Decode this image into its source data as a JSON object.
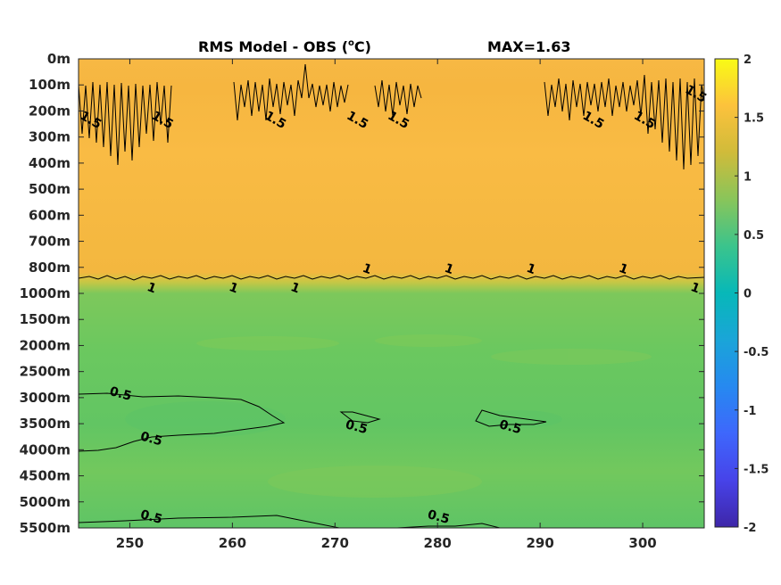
{
  "chart_data": {
    "type": "heatmap",
    "title": "RMS Model - OBS",
    "title_unit_base": "C",
    "title_unit_sup": "o",
    "max_label": "MAX=1.63",
    "x_ticks": [
      "250",
      "260",
      "270",
      "280",
      "290",
      "300"
    ],
    "x_tick_values": [
      250,
      260,
      270,
      280,
      290,
      300
    ],
    "xlim": [
      245,
      306
    ],
    "y_ticks": [
      "0m",
      "100m",
      "200m",
      "300m",
      "400m",
      "500m",
      "600m",
      "700m",
      "800m",
      "1000m",
      "1500m",
      "2000m",
      "2500m",
      "3000m",
      "3500m",
      "4000m",
      "4500m",
      "5000m",
      "5500m"
    ],
    "colorbar": {
      "ticks": [
        "2",
        "1.5",
        "1",
        "0.5",
        "0",
        "-0.5",
        "-1",
        "-1.5",
        "-2"
      ],
      "tick_values": [
        2,
        1.5,
        1,
        0.5,
        0,
        -0.5,
        -1,
        -1.5,
        -2
      ],
      "range": [
        -2,
        2
      ],
      "colormap": "parula"
    },
    "field": {
      "upper_layer_value": 1.4,
      "lower_layer_value": 0.6,
      "upper_layer_color": "#f7b844",
      "lower_layer_color": "#73c75e"
    },
    "contour_labels": [
      {
        "text": "1.5",
        "x": 246,
        "level": "200m"
      },
      {
        "text": "1.5",
        "x": 253,
        "level": "200m"
      },
      {
        "text": "1.5",
        "x": 264,
        "level": "200m"
      },
      {
        "text": "1.5",
        "x": 272,
        "level": "200m"
      },
      {
        "text": "1.5",
        "x": 276,
        "level": "200m"
      },
      {
        "text": "1.5",
        "x": 295,
        "level": "200m"
      },
      {
        "text": "1.5",
        "x": 300,
        "level": "200m"
      },
      {
        "text": "1.5",
        "x": 305,
        "level": "100m"
      },
      {
        "text": "1",
        "x": 252,
        "level": "1000m"
      },
      {
        "text": "1",
        "x": 260,
        "level": "1000m"
      },
      {
        "text": "1",
        "x": 266,
        "level": "1000m"
      },
      {
        "text": "1",
        "x": 273,
        "level": "800m"
      },
      {
        "text": "1",
        "x": 281,
        "level": "800m"
      },
      {
        "text": "1",
        "x": 289,
        "level": "800m"
      },
      {
        "text": "1",
        "x": 298,
        "level": "800m"
      },
      {
        "text": "1",
        "x": 305,
        "level": "1000m"
      },
      {
        "text": "0.5",
        "x": 249,
        "level": "3000m"
      },
      {
        "text": "0.5",
        "x": 252,
        "level": "4000m"
      },
      {
        "text": "0.5",
        "x": 272,
        "level": "3500m"
      },
      {
        "text": "0.5",
        "x": 287,
        "level": "3500m"
      },
      {
        "text": "0.5",
        "x": 252,
        "level": "5500m"
      },
      {
        "text": "0.5",
        "x": 280,
        "level": "5500m"
      }
    ]
  }
}
